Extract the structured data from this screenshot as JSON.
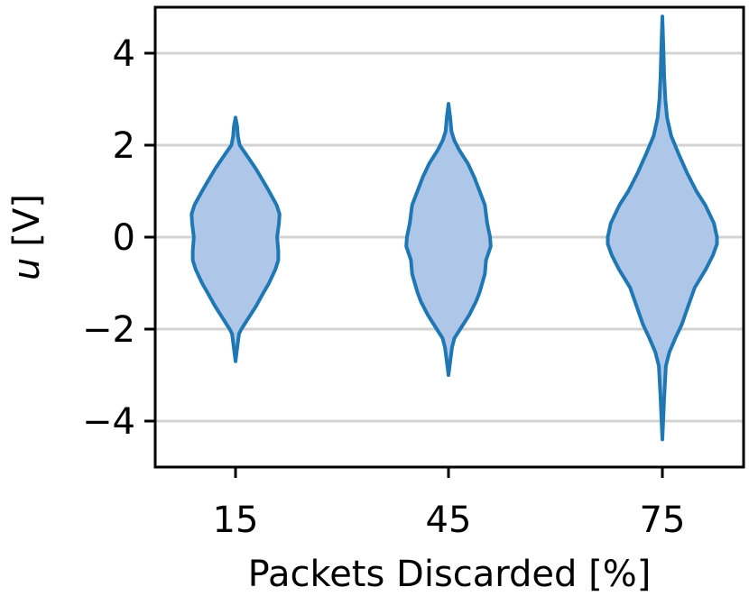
{
  "chart_data": {
    "type": "violin",
    "xlabel": "Packets Discarded [%]",
    "ylabel_var": "u",
    "ylabel_unit": "[V]",
    "ylim": [
      -5,
      5
    ],
    "yticks": [
      4,
      2,
      0,
      -2,
      -4
    ],
    "ytick_labels": [
      "4",
      "2",
      "0",
      "−2",
      "−4"
    ],
    "categories": [
      "15",
      "45",
      "75"
    ],
    "grid": "horizontal",
    "colors": {
      "fill": "#aec7e8",
      "stroke": "#1f77b4",
      "grid": "#d3d3d3"
    },
    "violins": [
      {
        "category": "15",
        "min": -2.7,
        "max": 2.6,
        "profile": [
          [
            -2.7,
            0.0
          ],
          [
            -2.4,
            0.03
          ],
          [
            -2.1,
            0.06
          ],
          [
            -2.0,
            0.1
          ],
          [
            -1.8,
            0.2
          ],
          [
            -1.5,
            0.35
          ],
          [
            -1.2,
            0.48
          ],
          [
            -1.0,
            0.57
          ],
          [
            -0.7,
            0.68
          ],
          [
            -0.5,
            0.73
          ],
          [
            -0.3,
            0.73
          ],
          [
            0.0,
            0.71
          ],
          [
            0.3,
            0.74
          ],
          [
            0.5,
            0.75
          ],
          [
            0.7,
            0.7
          ],
          [
            1.0,
            0.57
          ],
          [
            1.2,
            0.48
          ],
          [
            1.5,
            0.34
          ],
          [
            1.8,
            0.18
          ],
          [
            2.0,
            0.07
          ],
          [
            2.2,
            0.04
          ],
          [
            2.4,
            0.03
          ],
          [
            2.6,
            0.0
          ]
        ]
      },
      {
        "category": "45",
        "min": -3.0,
        "max": 2.9,
        "profile": [
          [
            -3.0,
            0.0
          ],
          [
            -2.7,
            0.03
          ],
          [
            -2.4,
            0.06
          ],
          [
            -2.2,
            0.1
          ],
          [
            -2.0,
            0.2
          ],
          [
            -1.7,
            0.35
          ],
          [
            -1.4,
            0.47
          ],
          [
            -1.2,
            0.53
          ],
          [
            -0.8,
            0.62
          ],
          [
            -0.5,
            0.64
          ],
          [
            -0.2,
            0.72
          ],
          [
            0.0,
            0.71
          ],
          [
            0.3,
            0.66
          ],
          [
            0.7,
            0.62
          ],
          [
            1.0,
            0.53
          ],
          [
            1.3,
            0.44
          ],
          [
            1.6,
            0.33
          ],
          [
            1.9,
            0.18
          ],
          [
            2.1,
            0.1
          ],
          [
            2.3,
            0.05
          ],
          [
            2.6,
            0.03
          ],
          [
            2.9,
            0.0
          ]
        ]
      },
      {
        "category": "75",
        "min": -4.4,
        "max": 4.8,
        "profile": [
          [
            -4.4,
            0.0
          ],
          [
            -3.5,
            0.03
          ],
          [
            -2.8,
            0.06
          ],
          [
            -2.5,
            0.12
          ],
          [
            -2.2,
            0.22
          ],
          [
            -1.9,
            0.33
          ],
          [
            -1.5,
            0.44
          ],
          [
            -1.1,
            0.55
          ],
          [
            -0.7,
            0.74
          ],
          [
            -0.4,
            0.86
          ],
          [
            -0.15,
            0.93
          ],
          [
            0.0,
            0.93
          ],
          [
            0.3,
            0.88
          ],
          [
            0.7,
            0.73
          ],
          [
            1.0,
            0.58
          ],
          [
            1.4,
            0.42
          ],
          [
            1.8,
            0.28
          ],
          [
            2.2,
            0.15
          ],
          [
            2.6,
            0.08
          ],
          [
            3.0,
            0.05
          ],
          [
            3.5,
            0.03
          ],
          [
            4.0,
            0.02
          ],
          [
            4.8,
            0.0
          ]
        ]
      }
    ]
  }
}
